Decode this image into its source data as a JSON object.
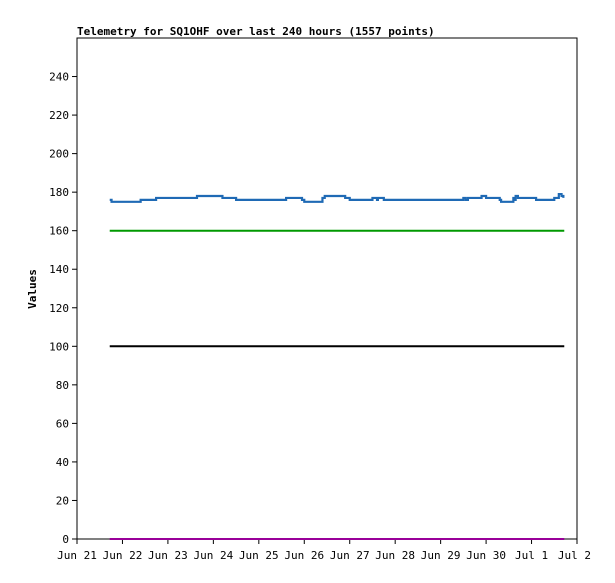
{
  "chart_data": {
    "type": "line",
    "title": "Telemetry for SQ1OHF over last 240 hours (1557 points)",
    "xlabel": "",
    "ylabel": "Values",
    "x_unit": "day",
    "x_ticks": [
      "Jun 21",
      "Jun 22",
      "Jun 23",
      "Jun 24",
      "Jun 25",
      "Jun 26",
      "Jun 27",
      "Jun 28",
      "Jun 29",
      "Jun 30",
      "Jul 1",
      "Jul 2"
    ],
    "xlim": [
      0,
      11
    ],
    "ylim": [
      0,
      260
    ],
    "y_ticks": [
      0,
      20,
      40,
      60,
      80,
      100,
      120,
      140,
      160,
      180,
      200,
      220,
      240
    ],
    "grid": false,
    "legend": "none",
    "series": [
      {
        "color": "#1f6ab5",
        "x": [
          0.72,
          0.76,
          1.3,
          1.4,
          1.7,
          1.74,
          2.3,
          2.6,
          2.64,
          3.2,
          3.5,
          4.5,
          4.6,
          4.65,
          4.95,
          5.0,
          5.4,
          5.45,
          5.55,
          5.9,
          6.0,
          6.45,
          6.5,
          6.6,
          6.62,
          6.7,
          6.75,
          6.85,
          7.5,
          7.8,
          8.5,
          8.55,
          8.6,
          8.85,
          8.9,
          9.0,
          9.3,
          9.33,
          9.6,
          9.62,
          9.65,
          9.7,
          10.0,
          10.1,
          10.4,
          10.5,
          10.56,
          10.6,
          10.66,
          10.7
        ],
        "values": [
          176,
          175,
          175,
          176,
          176,
          177,
          177,
          177,
          178,
          177,
          176,
          176,
          177,
          177,
          176,
          175,
          177,
          178,
          178,
          177,
          176,
          176,
          177,
          176,
          177,
          177,
          176,
          176,
          176,
          176,
          177,
          176,
          177,
          177,
          178,
          177,
          176,
          175,
          177,
          176,
          178,
          177,
          177,
          176,
          176,
          177,
          177,
          179,
          178,
          177
        ]
      },
      {
        "color": "#009900",
        "x": [
          0.72,
          10.72
        ],
        "values": [
          160,
          160
        ]
      },
      {
        "color": "#000000",
        "x": [
          0.72,
          10.72
        ],
        "values": [
          100,
          100
        ]
      },
      {
        "color": "#990099",
        "x": [
          0.72,
          10.72
        ],
        "values": [
          0,
          0
        ]
      }
    ]
  }
}
